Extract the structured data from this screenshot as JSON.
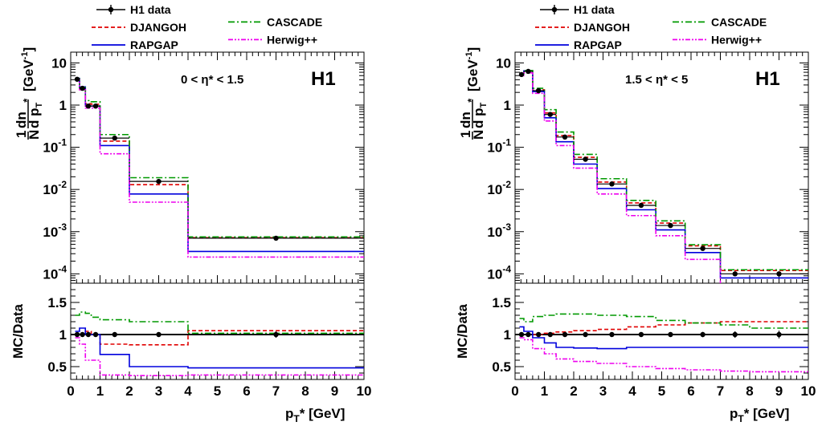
{
  "colors": {
    "data": "#000000",
    "djangoh": "#e00000",
    "rapgap": "#0000dd",
    "cascade": "#009900",
    "herwig": "#ee00ee"
  },
  "chart_data": [
    {
      "type": "line",
      "experiment": "H1",
      "region": "0 < η* < 1.5",
      "ylabel_parts": {
        "prefix": "1",
        "over1": "dn",
        "over2": "N d p",
        "sub": "T",
        "star": "*",
        "unit": "[GeV",
        "unit_exp": "-1",
        "unit_close": "]"
      },
      "ratio_ylabel": "MC/Data",
      "xlabel_parts": {
        "p": "p",
        "sub": "T",
        "rest": "* [GeV]"
      },
      "x_ticks": [
        "0",
        "1",
        "2",
        "3",
        "4",
        "5",
        "6",
        "7",
        "8",
        "9",
        "10"
      ],
      "y_ticks": [
        {
          "value": 10,
          "base": "10",
          "exp": ""
        },
        {
          "value": 1,
          "base": "1",
          "exp": ""
        },
        {
          "value": 0.1,
          "base": "10",
          "exp": "-1"
        },
        {
          "value": 0.01,
          "base": "10",
          "exp": "-2"
        },
        {
          "value": 0.001,
          "base": "10",
          "exp": "-3"
        },
        {
          "value": 0.0001,
          "base": "10",
          "exp": "-4"
        }
      ],
      "ratio_ticks": [
        "0.5",
        "1",
        "1.5"
      ],
      "xlim": [
        0,
        10
      ],
      "ylim_log": [
        6e-05,
        18
      ],
      "ratio_ylim": [
        0.3,
        1.8
      ],
      "bin_edges": [
        0.15,
        0.3,
        0.5,
        0.7,
        1.0,
        2.0,
        4.0,
        10.0
      ],
      "data": {
        "name": "H1 data",
        "x": [
          0.22,
          0.4,
          0.6,
          0.85,
          1.5,
          3.0,
          7.0
        ],
        "y": [
          4.1,
          2.5,
          0.95,
          0.95,
          0.165,
          0.0155,
          0.0007
        ],
        "ratio_err": [
          0.02,
          0.02,
          0.02,
          0.02,
          0.02,
          0.03,
          0.05
        ]
      },
      "series": [
        {
          "name": "DJANGOH",
          "key": "djangoh",
          "style": "dashed",
          "values": [
            4.1,
            2.5,
            1.08,
            1.05,
            0.14,
            0.013,
            0.00072
          ],
          "ratio": [
            1.0,
            1.0,
            1.05,
            1.0,
            0.85,
            0.84,
            1.06
          ]
        },
        {
          "name": "RAPGAP",
          "key": "rapgap",
          "style": "solid",
          "values": [
            4.3,
            2.7,
            0.95,
            0.95,
            0.11,
            0.0078,
            0.00034
          ],
          "ratio": [
            1.05,
            1.1,
            1.0,
            1.0,
            0.69,
            0.5,
            0.48
          ]
        },
        {
          "name": "CASCADE",
          "key": "cascade",
          "style": "dashdot",
          "values": [
            4.2,
            2.6,
            1.28,
            1.2,
            0.2,
            0.019,
            0.00075
          ],
          "ratio": [
            1.3,
            1.35,
            1.33,
            1.27,
            1.23,
            1.2,
            1.02
          ]
        },
        {
          "name": "Herwig++",
          "key": "herwig",
          "style": "dashdotdot",
          "values": [
            4.0,
            2.3,
            0.85,
            0.85,
            0.07,
            0.005,
            0.00025
          ],
          "ratio": [
            0.95,
            0.85,
            0.6,
            0.6,
            0.37,
            0.36,
            0.37
          ]
        }
      ]
    },
    {
      "type": "line",
      "experiment": "H1",
      "region": "1.5 < η* < 5",
      "ylabel_parts": {
        "prefix": "1",
        "over1": "dn",
        "over2": "N d p",
        "sub": "T",
        "star": "*",
        "unit": "[GeV",
        "unit_exp": "-1",
        "unit_close": "]"
      },
      "ratio_ylabel": "MC/Data",
      "xlabel_parts": {
        "p": "p",
        "sub": "T",
        "rest": "* [GeV]"
      },
      "x_ticks": [
        "0",
        "1",
        "2",
        "3",
        "4",
        "5",
        "6",
        "7",
        "8",
        "9",
        "10"
      ],
      "y_ticks": [
        {
          "value": 10,
          "base": "10",
          "exp": ""
        },
        {
          "value": 1,
          "base": "1",
          "exp": ""
        },
        {
          "value": 0.1,
          "base": "10",
          "exp": "-1"
        },
        {
          "value": 0.01,
          "base": "10",
          "exp": "-2"
        },
        {
          "value": 0.001,
          "base": "10",
          "exp": "-3"
        },
        {
          "value": 0.0001,
          "base": "10",
          "exp": "-4"
        }
      ],
      "ratio_ticks": [
        "0.5",
        "1",
        "1.5"
      ],
      "xlim": [
        0,
        10
      ],
      "ylim_log": [
        6e-05,
        18
      ],
      "ratio_ylim": [
        0.3,
        1.8
      ],
      "bin_edges": [
        0.15,
        0.3,
        0.6,
        1.0,
        1.4,
        2.0,
        2.8,
        3.8,
        4.8,
        5.8,
        7.0,
        8.0,
        10.0
      ],
      "data": {
        "name": "H1 data",
        "x": [
          0.22,
          0.45,
          0.8,
          1.2,
          1.7,
          2.4,
          3.3,
          4.3,
          5.3,
          6.4,
          7.5,
          9.0
        ],
        "y": [
          5.3,
          6.3,
          2.2,
          0.6,
          0.175,
          0.052,
          0.0135,
          0.0042,
          0.0014,
          0.0004,
          0.0001,
          0.0001
        ],
        "ratio_err": [
          0.02,
          0.02,
          0.02,
          0.02,
          0.02,
          0.02,
          0.02,
          0.02,
          0.03,
          0.04,
          0.05,
          0.06
        ]
      },
      "series": [
        {
          "name": "DJANGOH",
          "key": "djangoh",
          "style": "dashed",
          "values": [
            5.4,
            6.4,
            2.3,
            0.65,
            0.19,
            0.058,
            0.015,
            0.0048,
            0.0016,
            0.00046,
            0.00012,
            0.00012
          ],
          "ratio": [
            1.0,
            1.0,
            1.0,
            1.02,
            1.04,
            1.06,
            1.08,
            1.12,
            1.15,
            1.18,
            1.2,
            1.2
          ]
        },
        {
          "name": "RAPGAP",
          "key": "rapgap",
          "style": "solid",
          "values": [
            5.6,
            6.5,
            2.1,
            0.5,
            0.135,
            0.04,
            0.0105,
            0.0033,
            0.0011,
            0.00032,
            8e-05,
            8e-05
          ],
          "ratio": [
            1.12,
            1.05,
            0.95,
            0.87,
            0.8,
            0.79,
            0.78,
            0.8,
            0.8,
            0.8,
            0.8,
            0.8
          ]
        },
        {
          "name": "CASCADE",
          "key": "cascade",
          "style": "dashdot",
          "values": [
            5.5,
            6.6,
            2.5,
            0.78,
            0.23,
            0.068,
            0.018,
            0.0055,
            0.0018,
            0.00049,
            0.000125,
            0.000125
          ],
          "ratio": [
            1.25,
            1.2,
            1.28,
            1.3,
            1.32,
            1.32,
            1.3,
            1.28,
            1.22,
            1.18,
            1.15,
            1.1
          ]
        },
        {
          "name": "Herwig++",
          "key": "herwig",
          "style": "dashdotdot",
          "values": [
            5.0,
            5.8,
            1.9,
            0.42,
            0.11,
            0.032,
            0.0078,
            0.0024,
            0.0008,
            0.00022,
            5e-05,
            5e-05
          ],
          "ratio": [
            0.95,
            0.92,
            0.78,
            0.7,
            0.62,
            0.58,
            0.55,
            0.5,
            0.47,
            0.45,
            0.43,
            0.42
          ]
        }
      ]
    }
  ]
}
